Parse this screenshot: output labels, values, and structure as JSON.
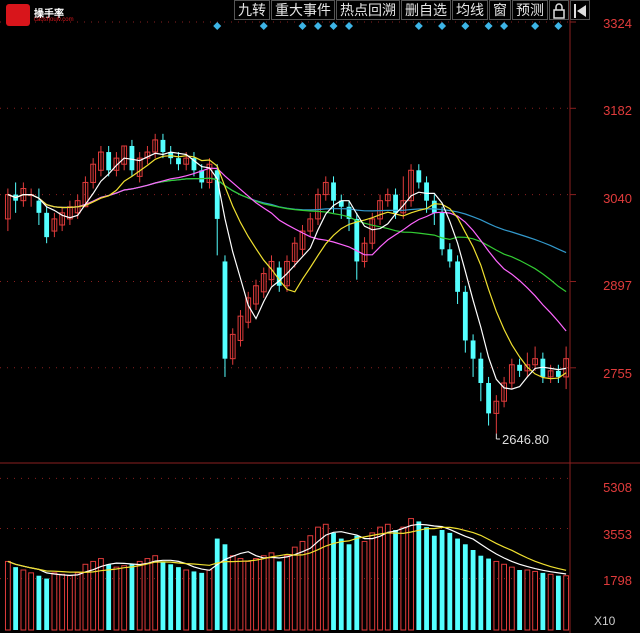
{
  "logo": {
    "name": "操手率",
    "sub": "caoshoulv.com"
  },
  "toolbar": {
    "buttons": [
      "九转",
      "重大事件",
      "热点回溯",
      "删自选",
      "均线",
      "窗",
      "预测"
    ],
    "lock_icon": "lock-icon",
    "back_icon": "back-arrow-icon"
  },
  "price_axis": {
    "labels": [
      "3324",
      "3182",
      "3040",
      "2897",
      "2755"
    ]
  },
  "volume_axis": {
    "labels": [
      "5308",
      "3553",
      "1798"
    ],
    "unit": "X10"
  },
  "annotation": {
    "min_price_text": "2646.80"
  },
  "colors": {
    "up": "#e03b3b",
    "down": "#54ffff",
    "ma5": "#ffffff",
    "ma10": "#f0e030",
    "ma20": "#ff66ff",
    "ma30": "#33cc33",
    "ma60": "#3399cc",
    "marker": "#3db4e6",
    "grid": "#8a1f1f"
  },
  "chart_data": {
    "type": "candlestick",
    "ylim": [
      2600,
      3324
    ],
    "volume_ylim": [
      0,
      5600
    ],
    "candles": [
      [
        3000,
        3040,
        2980,
        3050
      ],
      [
        3040,
        3030,
        3010,
        3060
      ],
      [
        3030,
        3050,
        3020,
        3060
      ],
      [
        3040,
        3040,
        3020,
        3050
      ],
      [
        3030,
        3010,
        2990,
        3050
      ],
      [
        3010,
        2970,
        2960,
        3020
      ],
      [
        2980,
        3000,
        2970,
        3010
      ],
      [
        2990,
        3010,
        2980,
        3020
      ],
      [
        3000,
        3020,
        2990,
        3030
      ],
      [
        3010,
        3030,
        3000,
        3040
      ],
      [
        3020,
        3060,
        3020,
        3070
      ],
      [
        3060,
        3090,
        3050,
        3100
      ],
      [
        3080,
        3110,
        3070,
        3120
      ],
      [
        3110,
        3080,
        3070,
        3120
      ],
      [
        3080,
        3100,
        3070,
        3110
      ],
      [
        3090,
        3120,
        3080,
        3120
      ],
      [
        3120,
        3080,
        3070,
        3130
      ],
      [
        3070,
        3100,
        3060,
        3110
      ],
      [
        3100,
        3110,
        3090,
        3120
      ],
      [
        3110,
        3130,
        3100,
        3140
      ],
      [
        3130,
        3110,
        3100,
        3140
      ],
      [
        3110,
        3100,
        3090,
        3120
      ],
      [
        3100,
        3090,
        3080,
        3110
      ],
      [
        3090,
        3100,
        3080,
        3110
      ],
      [
        3100,
        3080,
        3070,
        3110
      ],
      [
        3080,
        3060,
        3050,
        3090
      ],
      [
        3060,
        3090,
        3050,
        3100
      ],
      [
        3080,
        3000,
        2940,
        3090
      ],
      [
        2930,
        2770,
        2740,
        2940
      ],
      [
        2770,
        2810,
        2760,
        2820
      ],
      [
        2800,
        2840,
        2790,
        2850
      ],
      [
        2830,
        2870,
        2820,
        2880
      ],
      [
        2860,
        2890,
        2850,
        2900
      ],
      [
        2880,
        2910,
        2870,
        2920
      ],
      [
        2900,
        2930,
        2890,
        2940
      ],
      [
        2920,
        2890,
        2880,
        2930
      ],
      [
        2890,
        2930,
        2880,
        2940
      ],
      [
        2930,
        2960,
        2920,
        2970
      ],
      [
        2950,
        2980,
        2940,
        2990
      ],
      [
        2980,
        3000,
        2970,
        3010
      ],
      [
        3000,
        3040,
        2990,
        3050
      ],
      [
        3040,
        3060,
        3030,
        3070
      ],
      [
        3060,
        3030,
        3010,
        3070
      ],
      [
        3030,
        3020,
        3000,
        3040
      ],
      [
        3020,
        3000,
        2980,
        3030
      ],
      [
        3000,
        2930,
        2900,
        3010
      ],
      [
        2930,
        2960,
        2920,
        2970
      ],
      [
        2960,
        3000,
        2950,
        3010
      ],
      [
        3000,
        3030,
        2990,
        3040
      ],
      [
        3030,
        3040,
        3020,
        3050
      ],
      [
        3040,
        3010,
        3000,
        3050
      ],
      [
        3010,
        3030,
        3000,
        3070
      ],
      [
        3030,
        3080,
        3020,
        3090
      ],
      [
        3080,
        3060,
        3050,
        3090
      ],
      [
        3060,
        3030,
        3010,
        3070
      ],
      [
        3030,
        3010,
        2990,
        3040
      ],
      [
        3010,
        2950,
        2940,
        3020
      ],
      [
        2950,
        2930,
        2920,
        2960
      ],
      [
        2930,
        2880,
        2860,
        2940
      ],
      [
        2880,
        2800,
        2780,
        2890
      ],
      [
        2800,
        2770,
        2740,
        2810
      ],
      [
        2770,
        2730,
        2700,
        2780
      ],
      [
        2730,
        2680,
        2660,
        2740
      ],
      [
        2680,
        2700,
        2646.8,
        2710
      ],
      [
        2700,
        2730,
        2690,
        2740
      ],
      [
        2730,
        2760,
        2720,
        2770
      ],
      [
        2760,
        2750,
        2740,
        2770
      ],
      [
        2750,
        2760,
        2740,
        2780
      ],
      [
        2760,
        2770,
        2750,
        2790
      ],
      [
        2770,
        2740,
        2730,
        2780
      ],
      [
        2740,
        2750,
        2730,
        2760
      ],
      [
        2750,
        2740,
        2730,
        2760
      ],
      [
        2740,
        2770,
        2720,
        2790
      ]
    ],
    "volume": [
      2400,
      2200,
      2100,
      2000,
      1900,
      1800,
      2000,
      1950,
      1900,
      2000,
      2300,
      2400,
      2500,
      2300,
      2200,
      2250,
      2300,
      2400,
      2500,
      2600,
      2400,
      2300,
      2200,
      2100,
      2050,
      2000,
      2100,
      3200,
      3000,
      2600,
      2500,
      2400,
      2500,
      2600,
      2700,
      2400,
      2600,
      2900,
      3100,
      3300,
      3600,
      3700,
      3400,
      3200,
      3000,
      3300,
      3100,
      3400,
      3600,
      3700,
      3500,
      3600,
      3900,
      3800,
      3600,
      3300,
      3500,
      3400,
      3200,
      3000,
      2800,
      2600,
      2500,
      2400,
      2300,
      2200,
      2100,
      2100,
      2050,
      2000,
      1950,
      1900,
      1900
    ],
    "markers_at_index": [
      27,
      33,
      38,
      40,
      42,
      44,
      53,
      56,
      59,
      62,
      64,
      68,
      71
    ]
  }
}
